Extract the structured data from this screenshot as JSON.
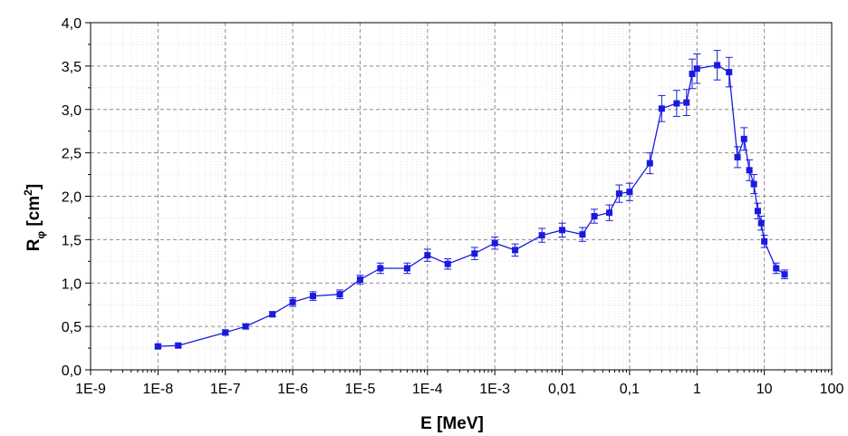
{
  "chart_data": {
    "type": "line",
    "xlabel": "E [MeV]",
    "ylabel": {
      "main": "R",
      "sub": "φ",
      "unit_open": " [cm",
      "sup": "2",
      "unit_close": "]"
    },
    "x_scale": "log",
    "xlim": [
      1e-09,
      100
    ],
    "ylim": [
      0,
      4
    ],
    "x_ticks": [
      {
        "value": 1e-09,
        "label": "1E-9"
      },
      {
        "value": 1e-08,
        "label": "1E-8"
      },
      {
        "value": 1e-07,
        "label": "1E-7"
      },
      {
        "value": 1e-06,
        "label": "1E-6"
      },
      {
        "value": 1e-05,
        "label": "1E-5"
      },
      {
        "value": 0.0001,
        "label": "1E-4"
      },
      {
        "value": 0.001,
        "label": "1E-3"
      },
      {
        "value": 0.01,
        "label": "0,01"
      },
      {
        "value": 0.1,
        "label": "0,1"
      },
      {
        "value": 1,
        "label": "1"
      },
      {
        "value": 10,
        "label": "10"
      },
      {
        "value": 100,
        "label": "100"
      }
    ],
    "y_ticks": [
      {
        "value": 0,
        "label": "0,0"
      },
      {
        "value": 0.5,
        "label": "0,5"
      },
      {
        "value": 1.0,
        "label": "1,0"
      },
      {
        "value": 1.5,
        "label": "1,5"
      },
      {
        "value": 2.0,
        "label": "2,0"
      },
      {
        "value": 2.5,
        "label": "2,5"
      },
      {
        "value": 3.0,
        "label": "3,0"
      },
      {
        "value": 3.5,
        "label": "3,5"
      },
      {
        "value": 4.0,
        "label": "4,0"
      }
    ],
    "grid": true,
    "color": "#1a1adf",
    "series": [
      {
        "points": [
          {
            "x": 1e-08,
            "y": 0.27,
            "err": 0.02
          },
          {
            "x": 2e-08,
            "y": 0.28,
            "err": 0.02
          },
          {
            "x": 1e-07,
            "y": 0.43,
            "err": 0.03
          },
          {
            "x": 2e-07,
            "y": 0.5,
            "err": 0.03
          },
          {
            "x": 5e-07,
            "y": 0.64,
            "err": 0.03
          },
          {
            "x": 1e-06,
            "y": 0.78,
            "err": 0.05
          },
          {
            "x": 2e-06,
            "y": 0.85,
            "err": 0.05
          },
          {
            "x": 5e-06,
            "y": 0.87,
            "err": 0.05
          },
          {
            "x": 1e-05,
            "y": 1.04,
            "err": 0.05
          },
          {
            "x": 2e-05,
            "y": 1.17,
            "err": 0.06
          },
          {
            "x": 5e-05,
            "y": 1.17,
            "err": 0.06
          },
          {
            "x": 0.0001,
            "y": 1.32,
            "err": 0.07
          },
          {
            "x": 0.0002,
            "y": 1.22,
            "err": 0.06
          },
          {
            "x": 0.0005,
            "y": 1.34,
            "err": 0.07
          },
          {
            "x": 0.001,
            "y": 1.46,
            "err": 0.07
          },
          {
            "x": 0.002,
            "y": 1.38,
            "err": 0.07
          },
          {
            "x": 0.005,
            "y": 1.55,
            "err": 0.08
          },
          {
            "x": 0.01,
            "y": 1.61,
            "err": 0.08
          },
          {
            "x": 0.02,
            "y": 1.56,
            "err": 0.08
          },
          {
            "x": 0.03,
            "y": 1.77,
            "err": 0.08
          },
          {
            "x": 0.05,
            "y": 1.81,
            "err": 0.09
          },
          {
            "x": 0.07,
            "y": 2.03,
            "err": 0.1
          },
          {
            "x": 0.1,
            "y": 2.05,
            "err": 0.1
          },
          {
            "x": 0.2,
            "y": 2.38,
            "err": 0.12
          },
          {
            "x": 0.3,
            "y": 3.01,
            "err": 0.15
          },
          {
            "x": 0.5,
            "y": 3.07,
            "err": 0.15
          },
          {
            "x": 0.7,
            "y": 3.08,
            "err": 0.15
          },
          {
            "x": 0.85,
            "y": 3.41,
            "err": 0.17
          },
          {
            "x": 1.0,
            "y": 3.47,
            "err": 0.17
          },
          {
            "x": 2.0,
            "y": 3.51,
            "err": 0.17
          },
          {
            "x": 3.0,
            "y": 3.43,
            "err": 0.17
          },
          {
            "x": 4.0,
            "y": 2.45,
            "err": 0.12
          },
          {
            "x": 5.0,
            "y": 2.66,
            "err": 0.13
          },
          {
            "x": 6.0,
            "y": 2.3,
            "err": 0.12
          },
          {
            "x": 7.0,
            "y": 2.14,
            "err": 0.11
          },
          {
            "x": 8.0,
            "y": 1.83,
            "err": 0.09
          },
          {
            "x": 9.0,
            "y": 1.69,
            "err": 0.08
          },
          {
            "x": 10.0,
            "y": 1.48,
            "err": 0.07
          },
          {
            "x": 15.0,
            "y": 1.17,
            "err": 0.06
          },
          {
            "x": 20.0,
            "y": 1.1,
            "err": 0.05
          }
        ]
      }
    ]
  }
}
